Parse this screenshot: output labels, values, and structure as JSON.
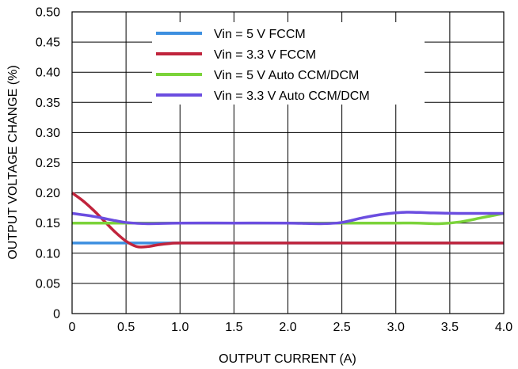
{
  "chart_data": {
    "type": "line",
    "xlabel": "OUTPUT CURRENT (A)",
    "ylabel": "OUTPUT VOLTAGE CHANGE (%)",
    "xlim": [
      0,
      4.0
    ],
    "ylim": [
      0,
      0.5
    ],
    "x_ticks": [
      "0",
      "0.5",
      "1.0",
      "1.5",
      "2.0",
      "2.5",
      "3.0",
      "3.5",
      "4.0"
    ],
    "y_ticks": [
      "0",
      "0.05",
      "0.10",
      "0.15",
      "0.20",
      "0.25",
      "0.30",
      "0.35",
      "0.40",
      "0.45",
      "0.50"
    ],
    "grid": true,
    "legend_position": "top-center",
    "series": [
      {
        "name": "Vin = 5 V FCCM",
        "color": "#3d8fe0",
        "x": [
          0,
          0.5,
          1.0,
          4.0
        ],
        "y": [
          0.117,
          0.117,
          0.117,
          0.117
        ]
      },
      {
        "name": "Vin = 3.3 V FCCM",
        "color": "#c0243c",
        "x": [
          0,
          0.1,
          0.2,
          0.3,
          0.4,
          0.5,
          0.6,
          0.7,
          0.8,
          0.9,
          1.0,
          1.5,
          2.0,
          2.5,
          3.0,
          3.5,
          4.0
        ],
        "y": [
          0.2,
          0.187,
          0.171,
          0.153,
          0.135,
          0.12,
          0.111,
          0.111,
          0.114,
          0.116,
          0.117,
          0.117,
          0.117,
          0.117,
          0.117,
          0.117,
          0.117
        ]
      },
      {
        "name": "Vin = 5 V Auto CCM/DCM",
        "color": "#7bd33a",
        "x": [
          0,
          0.5,
          1.0,
          1.5,
          2.0,
          2.5,
          3.0,
          3.2,
          3.4,
          3.6,
          3.8,
          4.0
        ],
        "y": [
          0.15,
          0.15,
          0.15,
          0.15,
          0.15,
          0.15,
          0.15,
          0.15,
          0.149,
          0.152,
          0.159,
          0.166
        ]
      },
      {
        "name": "Vin = 3.3 V Auto CCM/DCM",
        "color": "#6b4de0",
        "x": [
          0,
          0.2,
          0.4,
          0.5,
          0.7,
          1.0,
          1.5,
          2.0,
          2.3,
          2.5,
          2.7,
          2.9,
          3.1,
          3.3,
          3.6,
          4.0
        ],
        "y": [
          0.166,
          0.161,
          0.154,
          0.151,
          0.149,
          0.15,
          0.15,
          0.15,
          0.149,
          0.151,
          0.159,
          0.165,
          0.168,
          0.167,
          0.166,
          0.166
        ]
      }
    ]
  }
}
